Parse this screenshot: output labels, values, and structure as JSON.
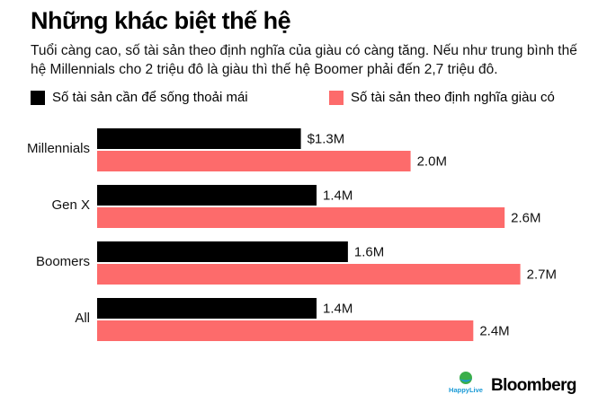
{
  "header": {
    "title": "Những khác biệt thế hệ",
    "subtitle": "Tuổi càng cao, số tài sản theo định nghĩa của giàu có càng tăng. Nếu như trung bình thế hệ Millennials cho 2 triệu đô là giàu thì thế hệ Boomer phải đến 2,7 triệu đô."
  },
  "legend": [
    {
      "label": "Số tài sản cần để sống thoải mái",
      "color": "#000000"
    },
    {
      "label": "Số tài sản theo định nghĩa giàu có",
      "color": "#fd6b6b"
    }
  ],
  "chart_data": {
    "type": "bar",
    "orientation": "horizontal",
    "categories": [
      "Millennials",
      "Gen X",
      "Boomers",
      "All"
    ],
    "series": [
      {
        "name": "Số tài sản cần để sống thoải mái",
        "values": [
          1.3,
          1.4,
          1.6,
          1.4
        ],
        "labels": [
          "$1.3M",
          "1.4M",
          "1.6M",
          "1.4M"
        ],
        "color": "#000000"
      },
      {
        "name": "Số tài sản theo định nghĩa giàu có",
        "values": [
          2.0,
          2.6,
          2.7,
          2.4
        ],
        "labels": [
          "2.0M",
          "2.6M",
          "2.7M",
          "2.4M"
        ],
        "color": "#fd6b6b"
      }
    ],
    "xlim": [
      0,
      2.7
    ],
    "grid": false,
    "legend_position": "top"
  },
  "footer": {
    "logo_text": "HappyLive",
    "source": "Bloomberg"
  }
}
